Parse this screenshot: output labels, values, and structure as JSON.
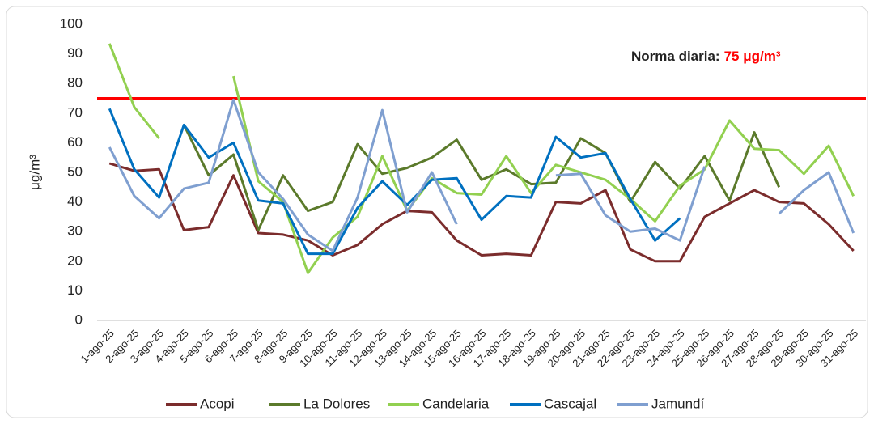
{
  "chart_data": {
    "type": "line",
    "y_label": "μg/m³",
    "annotation": {
      "label": "Norma diaria:",
      "value": 75,
      "value_label": "75 μg/m³",
      "color": "#ff0000"
    },
    "categories": [
      "1-ago-25",
      "2-ago-25",
      "3-ago-25",
      "4-ago-25",
      "5-ago-25",
      "6-ago-25",
      "7-ago-25",
      "8-ago-25",
      "9-ago-25",
      "10-ago-25",
      "11-ago-25",
      "12-ago-25",
      "13-ago-25",
      "14-ago-25",
      "15-ago-25",
      "16-ago-25",
      "17-ago-25",
      "18-ago-25",
      "19-ago-25",
      "20-ago-25",
      "21-ago-25",
      "22-ago-25",
      "23-ago-25",
      "24-ago-25",
      "25-ago-25",
      "26-ago-25",
      "27-ago-25",
      "28-ago-25",
      "29-ago-25",
      "30-ago-25",
      "31-ago-25"
    ],
    "series": [
      {
        "name": "Acopi",
        "color": "#7b2c2c",
        "values": [
          53,
          50.5,
          51,
          30.5,
          31.5,
          49,
          29.5,
          29,
          27,
          22,
          25.5,
          32.5,
          37,
          36.5,
          27,
          22,
          22.5,
          22,
          40,
          39.5,
          44,
          24,
          20,
          20,
          35,
          39.5,
          44,
          40,
          39.5,
          32.5,
          23.5
        ]
      },
      {
        "name": "La Dolores",
        "color": "#5b7a2b",
        "values": [
          null,
          null,
          null,
          66,
          49,
          56,
          30.5,
          49,
          37,
          40,
          59.5,
          49.5,
          51.5,
          55,
          61,
          47.5,
          51,
          46,
          46.5,
          61.5,
          56.5,
          40,
          53.5,
          44.5,
          55.5,
          40.5,
          63.5,
          45,
          null,
          null,
          null
        ]
      },
      {
        "name": "Candelaria",
        "color": "#92d050",
        "values": [
          93.5,
          72,
          61.5,
          null,
          null,
          82.5,
          47,
          40,
          16,
          28,
          35,
          55.5,
          37,
          48,
          43,
          42.5,
          55.5,
          43,
          52.5,
          50,
          47.5,
          41,
          33.5,
          45.5,
          51,
          67.5,
          58,
          57.5,
          49.5,
          59,
          42
        ]
      },
      {
        "name": "Cascajal",
        "color": "#0070c0",
        "values": [
          71.5,
          51,
          41.5,
          66,
          55,
          60,
          40.5,
          39.5,
          22.5,
          22.5,
          38,
          47,
          39,
          47.5,
          48,
          34,
          42,
          41.5,
          62,
          55,
          56.5,
          41,
          27,
          34.5,
          null,
          null,
          null,
          null,
          null,
          null,
          null
        ]
      },
      {
        "name": "Jamundí",
        "color": "#7f9fd0",
        "values": [
          58.5,
          42,
          34.5,
          44.5,
          46.5,
          74.5,
          50,
          41,
          29,
          23.5,
          41.5,
          71,
          36.5,
          50,
          32.5,
          null,
          null,
          null,
          49,
          49.5,
          35.5,
          30,
          31,
          27,
          52,
          null,
          null,
          36,
          44,
          50,
          29.5
        ]
      }
    ],
    "ylim": [
      0,
      100
    ],
    "yticks": [
      0,
      10,
      20,
      30,
      40,
      50,
      60,
      70,
      80,
      90,
      100
    ],
    "grid": false
  }
}
